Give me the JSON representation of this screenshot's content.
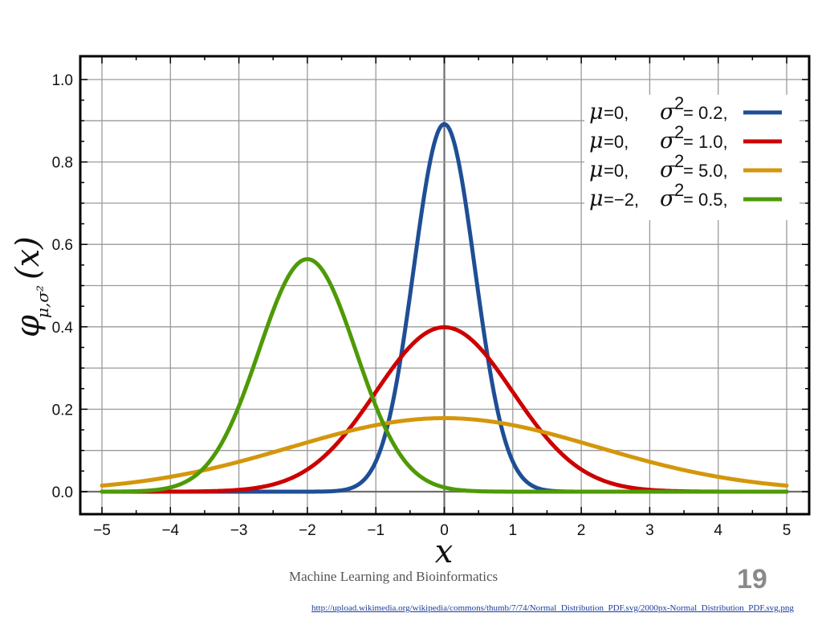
{
  "slide": {
    "footer_text": "Machine Learning and Bioinformatics",
    "page_number": "19",
    "source_link": "http://upload.wikimedia.org/wikipedia/commons/thumb/7/74/Normal_Distribution_PDF.svg/2000px-Normal_Distribution_PDF.svg.png"
  },
  "colors": {
    "blue": "#1f4e96",
    "red": "#cc0000",
    "gold": "#d4960b",
    "green": "#4e9a06",
    "grid": "#9a9a9a",
    "axis_zero": "#6e6e6e",
    "frame": "#000000"
  },
  "chart_data": {
    "type": "line",
    "title": "",
    "xlabel": "x",
    "ylabel": "φμ,σ²(x)",
    "xlim": [
      -5,
      5
    ],
    "ylim": [
      0,
      1.0
    ],
    "x_ticks": [
      "−5",
      "−4",
      "−3",
      "−2",
      "−1",
      "0",
      "1",
      "2",
      "3",
      "4",
      "5"
    ],
    "y_ticks": [
      "0.0",
      "0.2",
      "0.4",
      "0.6",
      "0.8",
      "1.0"
    ],
    "grid": true,
    "legend_position": "top-right",
    "series": [
      {
        "name": "μ=0, σ²=0.2,",
        "mu_label": "=0,",
        "sigma_label": "= 0.2,",
        "mu": 0,
        "variance": 0.2,
        "color": "#1f4e96",
        "x": [
          -5,
          -4,
          -3,
          -2,
          -1.5,
          -1,
          -0.75,
          -0.5,
          -0.25,
          0,
          0.25,
          0.5,
          0.75,
          1,
          1.5,
          2,
          3,
          4,
          5
        ],
        "y": [
          0,
          0,
          0,
          0,
          0.004,
          0.073,
          0.219,
          0.479,
          0.766,
          0.892,
          0.766,
          0.479,
          0.219,
          0.073,
          0.004,
          0,
          0,
          0,
          0
        ]
      },
      {
        "name": "μ=0, σ²=1.0,",
        "mu_label": "=0,",
        "sigma_label": "= 1.0,",
        "mu": 0,
        "variance": 1.0,
        "color": "#cc0000",
        "x": [
          -5,
          -4,
          -3,
          -2,
          -1.5,
          -1,
          -0.5,
          0,
          0.5,
          1,
          1.5,
          2,
          3,
          4,
          5
        ],
        "y": [
          0,
          0,
          0.004,
          0.054,
          0.13,
          0.242,
          0.352,
          0.399,
          0.352,
          0.242,
          0.13,
          0.054,
          0.004,
          0,
          0
        ]
      },
      {
        "name": "μ=0, σ²=5.0,",
        "mu_label": "=0,",
        "sigma_label": "= 5.0,",
        "mu": 0,
        "variance": 5.0,
        "color": "#d4960b",
        "x": [
          -5,
          -4,
          -3,
          -2,
          -1,
          0,
          1,
          2,
          3,
          4,
          5
        ],
        "y": [
          0.015,
          0.036,
          0.072,
          0.12,
          0.161,
          0.178,
          0.161,
          0.12,
          0.072,
          0.036,
          0.015
        ]
      },
      {
        "name": "μ=−2, σ²=0.5,",
        "mu_label": "=−2,",
        "sigma_label": "= 0.5,",
        "mu": -2,
        "variance": 0.5,
        "color": "#4e9a06",
        "x": [
          -5,
          -4,
          -3.5,
          -3,
          -2.5,
          -2,
          -1.5,
          -1,
          -0.5,
          0,
          1,
          2,
          3,
          4,
          5
        ],
        "y": [
          0,
          0.01,
          0.059,
          0.208,
          0.439,
          0.564,
          0.439,
          0.208,
          0.059,
          0.01,
          0,
          0,
          0,
          0,
          0
        ]
      }
    ]
  }
}
